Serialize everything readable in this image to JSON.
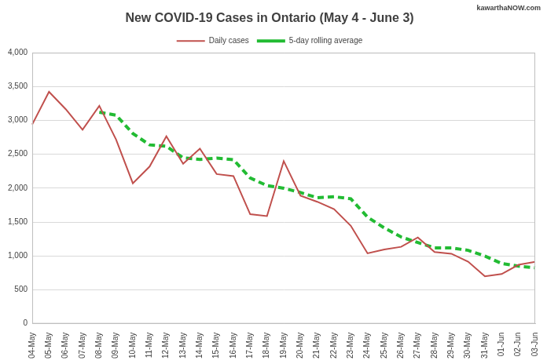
{
  "chart_data": {
    "type": "line",
    "title": "New COVID-19 Cases in Ontario (May 4 - June 3)",
    "annotation": "kawarthaNOW.com",
    "categories": [
      "04-May",
      "05-May",
      "06-May",
      "07-May",
      "08-May",
      "09-May",
      "10-May",
      "11-May",
      "12-May",
      "13-May",
      "14-May",
      "15-May",
      "16-May",
      "17-May",
      "18-May",
      "19-May",
      "20-May",
      "21-May",
      "22-May",
      "23-May",
      "24-May",
      "25-May",
      "26-May",
      "27-May",
      "28-May",
      "29-May",
      "30-May",
      "31-May",
      "01-Jun",
      "02-Jun",
      "03-Jun"
    ],
    "series": [
      {
        "name": "Daily cases",
        "color": "#c0504d",
        "line_style": "solid",
        "marker": "none",
        "values": [
          2941,
          3424,
          3166,
          2864,
          3216,
          2719,
          2073,
          2320,
          2766,
          2362,
          2585,
          2209,
          2180,
          1616,
          1588,
          2400,
          1890,
          1800,
          1691,
          1446,
          1039,
          1095,
          1135,
          1273,
          1057,
          1033,
          916,
          699,
          733,
          870,
          914
        ]
      },
      {
        "name": "5-day rolling average",
        "color": "#22bb33",
        "line_style": "dashed",
        "marker": "none",
        "values": [
          null,
          null,
          null,
          null,
          3122,
          3078,
          2808,
          2640,
          2619,
          2448,
          2426,
          2445,
          2421,
          2151,
          2039,
          1999,
          1937,
          1859,
          1874,
          1845,
          1573,
          1414,
          1281,
          1198,
          1120,
          1119,
          1083,
          999,
          888,
          850,
          826
        ]
      }
    ],
    "ylim": [
      0,
      4000
    ],
    "yticks": [
      0,
      500,
      {
        "value": 1000,
        "label": "1,000"
      },
      {
        "value": 1500,
        "label": "1,500"
      },
      {
        "value": 2000,
        "label": "2,000"
      },
      {
        "value": 2500,
        "label": "2,500"
      },
      {
        "value": 3000,
        "label": "3,000"
      },
      {
        "value": 3500,
        "label": "3,500"
      },
      {
        "value": 4000,
        "label": "4,000"
      }
    ],
    "grid": true,
    "legend": "top"
  }
}
